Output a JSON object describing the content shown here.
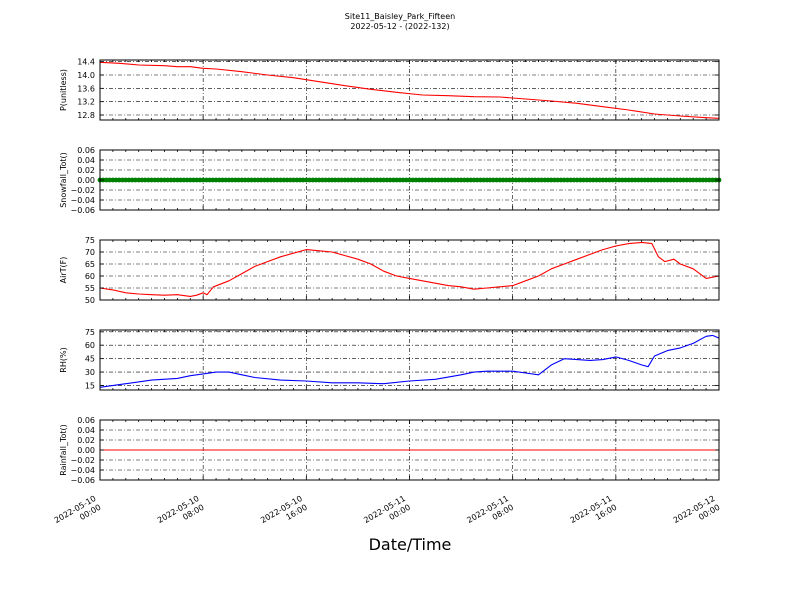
{
  "figure": {
    "title": "Site11_Baisley_Park_Fifteen",
    "subtitle": "2022-05-12 - (2022-132)",
    "xlabel": "Date/Time",
    "x_ticks": [
      {
        "t": 0,
        "line1": "2022-05-10",
        "line2": "00:00"
      },
      {
        "t": 8,
        "line1": "2022-05-10",
        "line2": "08:00"
      },
      {
        "t": 16,
        "line1": "2022-05-10",
        "line2": "16:00"
      },
      {
        "t": 24,
        "line1": "2022-05-11",
        "line2": "00:00"
      },
      {
        "t": 32,
        "line1": "2022-05-11",
        "line2": "08:00"
      },
      {
        "t": 40,
        "line1": "2022-05-11",
        "line2": "16:00"
      },
      {
        "t": 48,
        "line1": "2022-05-12",
        "line2": "00:00"
      }
    ]
  },
  "chart_data": [
    {
      "type": "line",
      "ylabel": "P(unitless)",
      "ylim": [
        12.65,
        14.45
      ],
      "yticks": [
        12.8,
        13.2,
        13.6,
        14.0,
        14.4
      ],
      "ytick_labels": [
        "12.8",
        "13.2",
        "13.6",
        "14.0",
        "14.4"
      ],
      "xlim": [
        "2022-05-10 00:00",
        "2022-05-12 00:00"
      ],
      "grid": true,
      "color": "#ff0000",
      "x_hours": [
        0,
        1.5,
        3,
        5,
        6,
        7,
        8,
        9,
        11,
        13,
        15,
        17,
        19,
        21,
        23,
        25,
        27,
        29,
        31,
        33,
        35,
        37,
        39,
        41,
        43,
        45,
        47,
        48
      ],
      "values": [
        14.38,
        14.35,
        14.3,
        14.28,
        14.25,
        14.25,
        14.2,
        14.18,
        14.1,
        14.0,
        13.92,
        13.8,
        13.68,
        13.57,
        13.48,
        13.4,
        13.38,
        13.35,
        13.34,
        13.28,
        13.22,
        13.15,
        13.05,
        12.95,
        12.83,
        12.77,
        12.72,
        12.7
      ]
    },
    {
      "type": "scatter",
      "ylabel": "Snowfall_Tot()",
      "ylim": [
        -0.06,
        0.06
      ],
      "yticks": [
        -0.06,
        -0.04,
        -0.02,
        0.0,
        0.02,
        0.04,
        0.06
      ],
      "ytick_labels": [
        "−0.06",
        "−0.04",
        "−0.02",
        "0.00",
        "0.02",
        "0.04",
        "0.06"
      ],
      "xlim": [
        "2022-05-10 00:00",
        "2022-05-12 00:00"
      ],
      "grid": true,
      "color": "#008000",
      "constant_value": 0.0
    },
    {
      "type": "line",
      "ylabel": "AirT(F)",
      "ylim": [
        50,
        75
      ],
      "yticks": [
        50,
        55,
        60,
        65,
        70,
        75
      ],
      "ytick_labels": [
        "50",
        "55",
        "60",
        "65",
        "70",
        "75"
      ],
      "xlim": [
        "2022-05-10 00:00",
        "2022-05-12 00:00"
      ],
      "grid": true,
      "color": "#ff0000",
      "x_hours": [
        0,
        1,
        2,
        3,
        4,
        5,
        6,
        7,
        7.5,
        8,
        8.3,
        8.8,
        10,
        11,
        12,
        13,
        14,
        15,
        16,
        17,
        18,
        19,
        20,
        21,
        22,
        23,
        24,
        25,
        26,
        27,
        28,
        29,
        30,
        31,
        32,
        33,
        34,
        35,
        36,
        37,
        38,
        39,
        40,
        41,
        42,
        42.8,
        43.3,
        43.8,
        44.5,
        45,
        46,
        47,
        48
      ],
      "values": [
        55,
        54.2,
        53,
        52.5,
        52.2,
        52,
        52.2,
        51.5,
        52,
        53,
        52.2,
        55.5,
        58,
        61,
        64,
        66,
        68,
        69.5,
        71,
        70.5,
        70,
        68.5,
        67,
        65,
        62,
        60,
        59,
        58,
        57,
        56,
        55.5,
        54.5,
        55,
        55.5,
        56,
        58,
        60,
        63,
        65,
        67,
        69,
        71,
        72.5,
        73.5,
        74,
        73.5,
        68,
        66,
        67,
        65,
        63,
        59,
        60
      ]
    },
    {
      "type": "line",
      "ylabel": "RH(%)",
      "ylim": [
        10,
        77
      ],
      "yticks": [
        15,
        30,
        45,
        60,
        75
      ],
      "ytick_labels": [
        "15",
        "30",
        "45",
        "60",
        "75"
      ],
      "xlim": [
        "2022-05-10 00:00",
        "2022-05-12 00:00"
      ],
      "grid": true,
      "color": "#0000ff",
      "x_hours": [
        0,
        2,
        4,
        6,
        7,
        8,
        9,
        10,
        11,
        12,
        14,
        16,
        18,
        20,
        22,
        24,
        26,
        28,
        29,
        30,
        31,
        32,
        33,
        34,
        35,
        36,
        37,
        38,
        39,
        40,
        41,
        42,
        42.5,
        43,
        44,
        45,
        46,
        47,
        47.5,
        48
      ],
      "values": [
        13,
        17,
        21,
        23,
        26,
        28,
        30,
        30,
        27,
        24,
        21,
        20,
        18,
        18,
        17,
        20,
        22,
        27,
        30,
        31,
        31,
        31,
        29,
        27,
        38,
        45,
        44,
        43,
        44,
        47,
        43,
        38,
        36,
        48,
        54,
        57,
        62,
        70,
        71,
        68
      ]
    },
    {
      "type": "line",
      "ylabel": "Rainfall_Tot()",
      "ylim": [
        -0.06,
        0.06
      ],
      "yticks": [
        -0.06,
        -0.04,
        -0.02,
        0.0,
        0.02,
        0.04,
        0.06
      ],
      "ytick_labels": [
        "−0.06",
        "−0.04",
        "−0.02",
        "0.00",
        "0.02",
        "0.04",
        "0.06"
      ],
      "xlim": [
        "2022-05-10 00:00",
        "2022-05-12 00:00"
      ],
      "grid": true,
      "color": "#ff0000",
      "x_hours": [
        0,
        48
      ],
      "values": [
        0.0,
        0.0
      ]
    }
  ]
}
